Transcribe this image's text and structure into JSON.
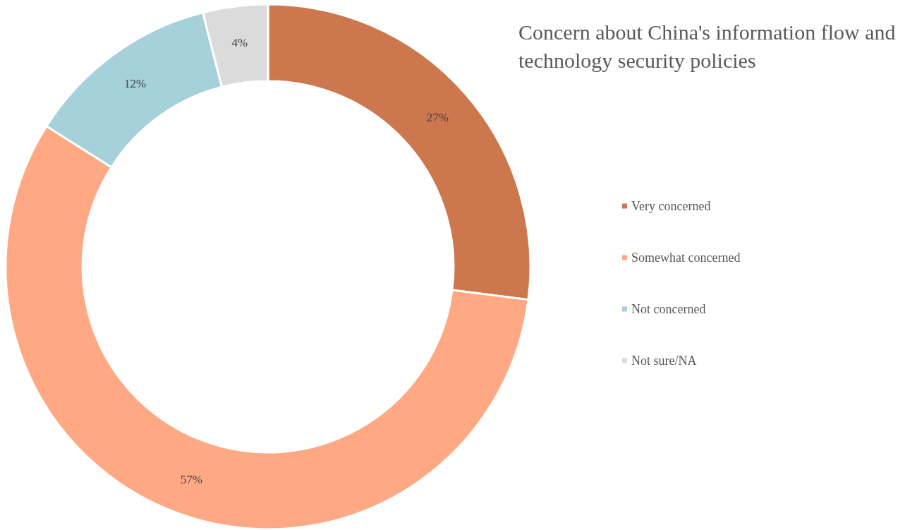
{
  "chart_data": {
    "type": "donut",
    "title": "Concern about China's information flow and technology security policies",
    "categories": [
      "Very concerned",
      "Somewhat concerned",
      "Not concerned",
      "Not sure/NA"
    ],
    "values": [
      27,
      57,
      12,
      4
    ],
    "colors": [
      "#cc774d",
      "#fea984",
      "#a6d0da",
      "#dbdbdb"
    ],
    "value_labels": [
      "27%",
      "57%",
      "12%",
      "4%"
    ],
    "legend": "right"
  }
}
